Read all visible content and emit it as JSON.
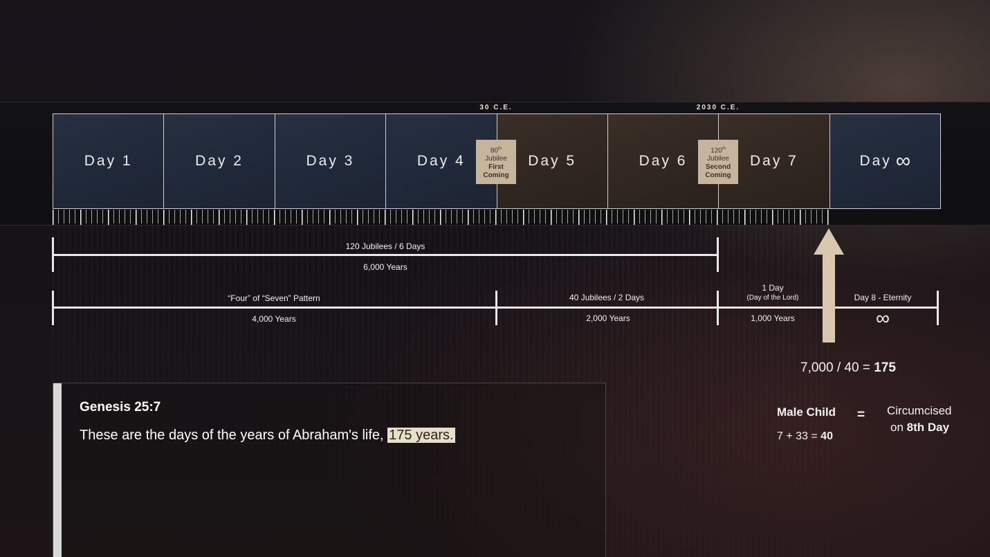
{
  "timeline": {
    "markers": [
      {
        "label": "30 C.E."
      },
      {
        "label": "2030 C.E."
      }
    ],
    "days": [
      {
        "label": "Day 1",
        "tone": "blue"
      },
      {
        "label": "Day 2",
        "tone": "blue"
      },
      {
        "label": "Day 3",
        "tone": "blue"
      },
      {
        "label": "Day 4",
        "tone": "blue"
      },
      {
        "label": "Day 5",
        "tone": "brown"
      },
      {
        "label": "Day 6",
        "tone": "brown"
      },
      {
        "label": "Day 7",
        "tone": "brown"
      },
      {
        "label": "Day",
        "symbol": "∞",
        "tone": "blue"
      }
    ],
    "jubilee_first": {
      "num": "80",
      "sup": "th",
      "line2": "Jubilee",
      "line3": "First",
      "line4": "Coming"
    },
    "jubilee_second": {
      "num": "120",
      "sup": "th",
      "line2": "Jubilee",
      "line3": "Second",
      "line4": "Coming"
    }
  },
  "spans": {
    "row1": {
      "top": "120 Jubilees / 6 Days",
      "bottom": "6,000 Years"
    },
    "row2": [
      {
        "top": "“Four” of “Seven” Pattern",
        "bottom": "4,000 Years"
      },
      {
        "top": "40 Jubilees / 2 Days",
        "bottom": "2,000 Years"
      },
      {
        "top": "1 Day",
        "top2": "(Day of the Lord)",
        "bottom": "1,000 Years"
      },
      {
        "top": "Day 8 - Eternity",
        "bottom": "∞"
      }
    ]
  },
  "equation": {
    "lhs": "7,000 / 40  =",
    "result": "175"
  },
  "circumcision": {
    "left_title": "Male Child",
    "left_calc": "7 + 33 =",
    "left_result": "40",
    "equals": "=",
    "right_line1": "Circumcised",
    "right_line2_prefix": "on",
    "right_line2_bold": "8th Day"
  },
  "scripture": {
    "reference": "Genesis 25:7",
    "text": "These are the days of the years of Abraham's life,",
    "highlight": "175 years."
  },
  "colors": {
    "jubilee_box": "#c7b49c",
    "highlight": "#e9dfc9",
    "arrow": "#d9c8ad",
    "day_blue": "#263041",
    "day_brown": "#3a2e26"
  }
}
